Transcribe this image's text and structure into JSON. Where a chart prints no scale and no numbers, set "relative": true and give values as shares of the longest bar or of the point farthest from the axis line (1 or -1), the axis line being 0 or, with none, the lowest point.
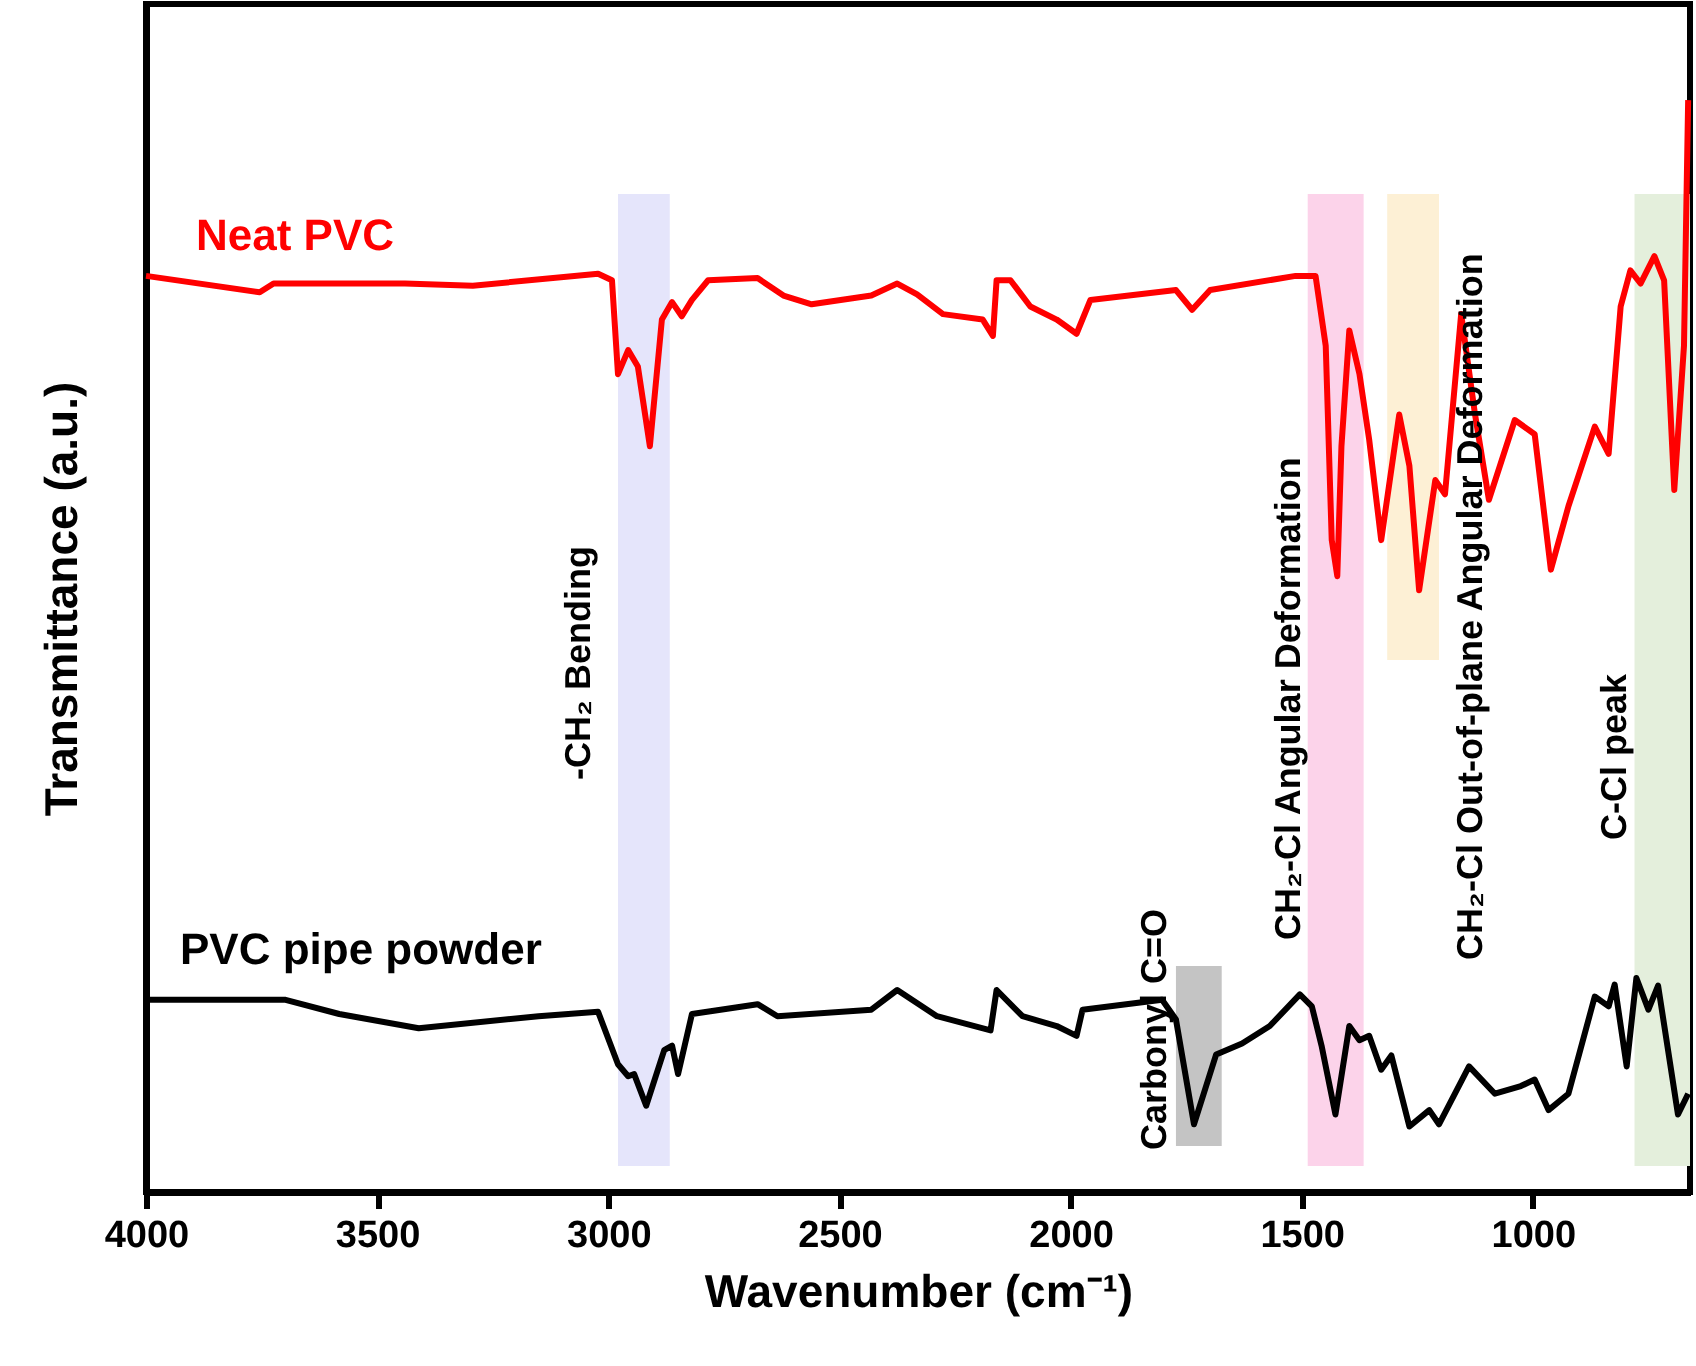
{
  "chart_data": {
    "type": "line",
    "xlabel": "Wavenumber (cm⁻¹)",
    "ylabel": "Transmittance (a.u.)",
    "relative": true,
    "xlim": [
      4000,
      660
    ],
    "xticks": [
      4000,
      3500,
      3000,
      2500,
      2000,
      1500,
      1000
    ],
    "series": [
      {
        "name": "Neat PVC",
        "color": "#ff0000",
        "x": [
          4000,
          3754,
          3724,
          3440,
          3293,
          3022,
          2992,
          2979,
          2957,
          2936,
          2910,
          2884,
          2862,
          2841,
          2819,
          2784,
          2677,
          2621,
          2560,
          2431,
          2375,
          2332,
          2276,
          2190,
          2168,
          2160,
          2130,
          2087,
          2030,
          1987,
          1957,
          1772,
          1737,
          1698,
          1513,
          1470,
          1448,
          1435,
          1423,
          1414,
          1397,
          1375,
          1354,
          1328,
          1289,
          1267,
          1246,
          1211,
          1190,
          1155,
          1125,
          1095,
          1039,
          996,
          961,
          923,
          866,
          836,
          810,
          789,
          767,
          737,
          716,
          694,
          673,
          664
        ],
        "values": [
          0.839,
          0.824,
          0.832,
          0.832,
          0.83,
          0.841,
          0.835,
          0.749,
          0.771,
          0.756,
          0.683,
          0.799,
          0.815,
          0.802,
          0.817,
          0.835,
          0.837,
          0.821,
          0.813,
          0.821,
          0.832,
          0.822,
          0.804,
          0.799,
          0.784,
          0.835,
          0.835,
          0.811,
          0.799,
          0.786,
          0.817,
          0.826,
          0.808,
          0.826,
          0.839,
          0.839,
          0.775,
          0.597,
          0.564,
          0.683,
          0.789,
          0.749,
          0.689,
          0.597,
          0.712,
          0.665,
          0.551,
          0.652,
          0.639,
          0.804,
          0.712,
          0.634,
          0.707,
          0.694,
          0.57,
          0.628,
          0.701,
          0.676,
          0.811,
          0.844,
          0.832,
          0.857,
          0.835,
          0.643,
          0.775,
          1.0
        ]
      },
      {
        "name": "PVC pipe powder",
        "color": "#000000",
        "x": [
          4000,
          3698,
          3582,
          3410,
          3151,
          3022,
          2979,
          2957,
          2944,
          2918,
          2879,
          2862,
          2849,
          2819,
          2677,
          2634,
          2431,
          2375,
          2289,
          2173,
          2160,
          2104,
          2030,
          1987,
          1974,
          1802,
          1772,
          1733,
          1685,
          1629,
          1569,
          1504,
          1478,
          1457,
          1427,
          1397,
          1375,
          1354,
          1328,
          1306,
          1267,
          1224,
          1203,
          1138,
          1082,
          1026,
          996,
          966,
          923,
          866,
          836,
          823,
          797,
          776,
          750,
          729,
          686,
          664
        ],
        "values": [
          0.176,
          0.176,
          0.163,
          0.15,
          0.161,
          0.165,
          0.117,
          0.106,
          0.108,
          0.079,
          0.13,
          0.134,
          0.108,
          0.163,
          0.172,
          0.161,
          0.167,
          0.185,
          0.161,
          0.148,
          0.185,
          0.161,
          0.152,
          0.143,
          0.167,
          0.176,
          0.158,
          0.062,
          0.126,
          0.136,
          0.152,
          0.181,
          0.17,
          0.134,
          0.071,
          0.152,
          0.139,
          0.143,
          0.112,
          0.125,
          0.06,
          0.075,
          0.062,
          0.115,
          0.09,
          0.097,
          0.103,
          0.075,
          0.09,
          0.179,
          0.17,
          0.19,
          0.115,
          0.196,
          0.167,
          0.189,
          0.071,
          0.09
        ]
      }
    ],
    "bands": [
      {
        "axis": "x",
        "from": 2979,
        "to": 2867,
        "label": "-CH₂ Bending",
        "color": "#e5e5fb"
      },
      {
        "axis": "x",
        "from": 1772,
        "to": 1673,
        "label": "Carbonyl C=O",
        "color": "#c4c4c4"
      },
      {
        "axis": "x",
        "from": 1487,
        "to": 1366,
        "label": "CH₂-Cl Angular Deformation",
        "color": "#fcd3ea"
      },
      {
        "axis": "x",
        "from": 1315,
        "to": 1203,
        "label": "CH₂-Cl Out-of-plane Angular Deformation",
        "color": "#fdf0d5"
      },
      {
        "axis": "x",
        "from": 780,
        "to": 660,
        "label": "C-Cl peak",
        "color": "#e4efdc"
      }
    ]
  }
}
